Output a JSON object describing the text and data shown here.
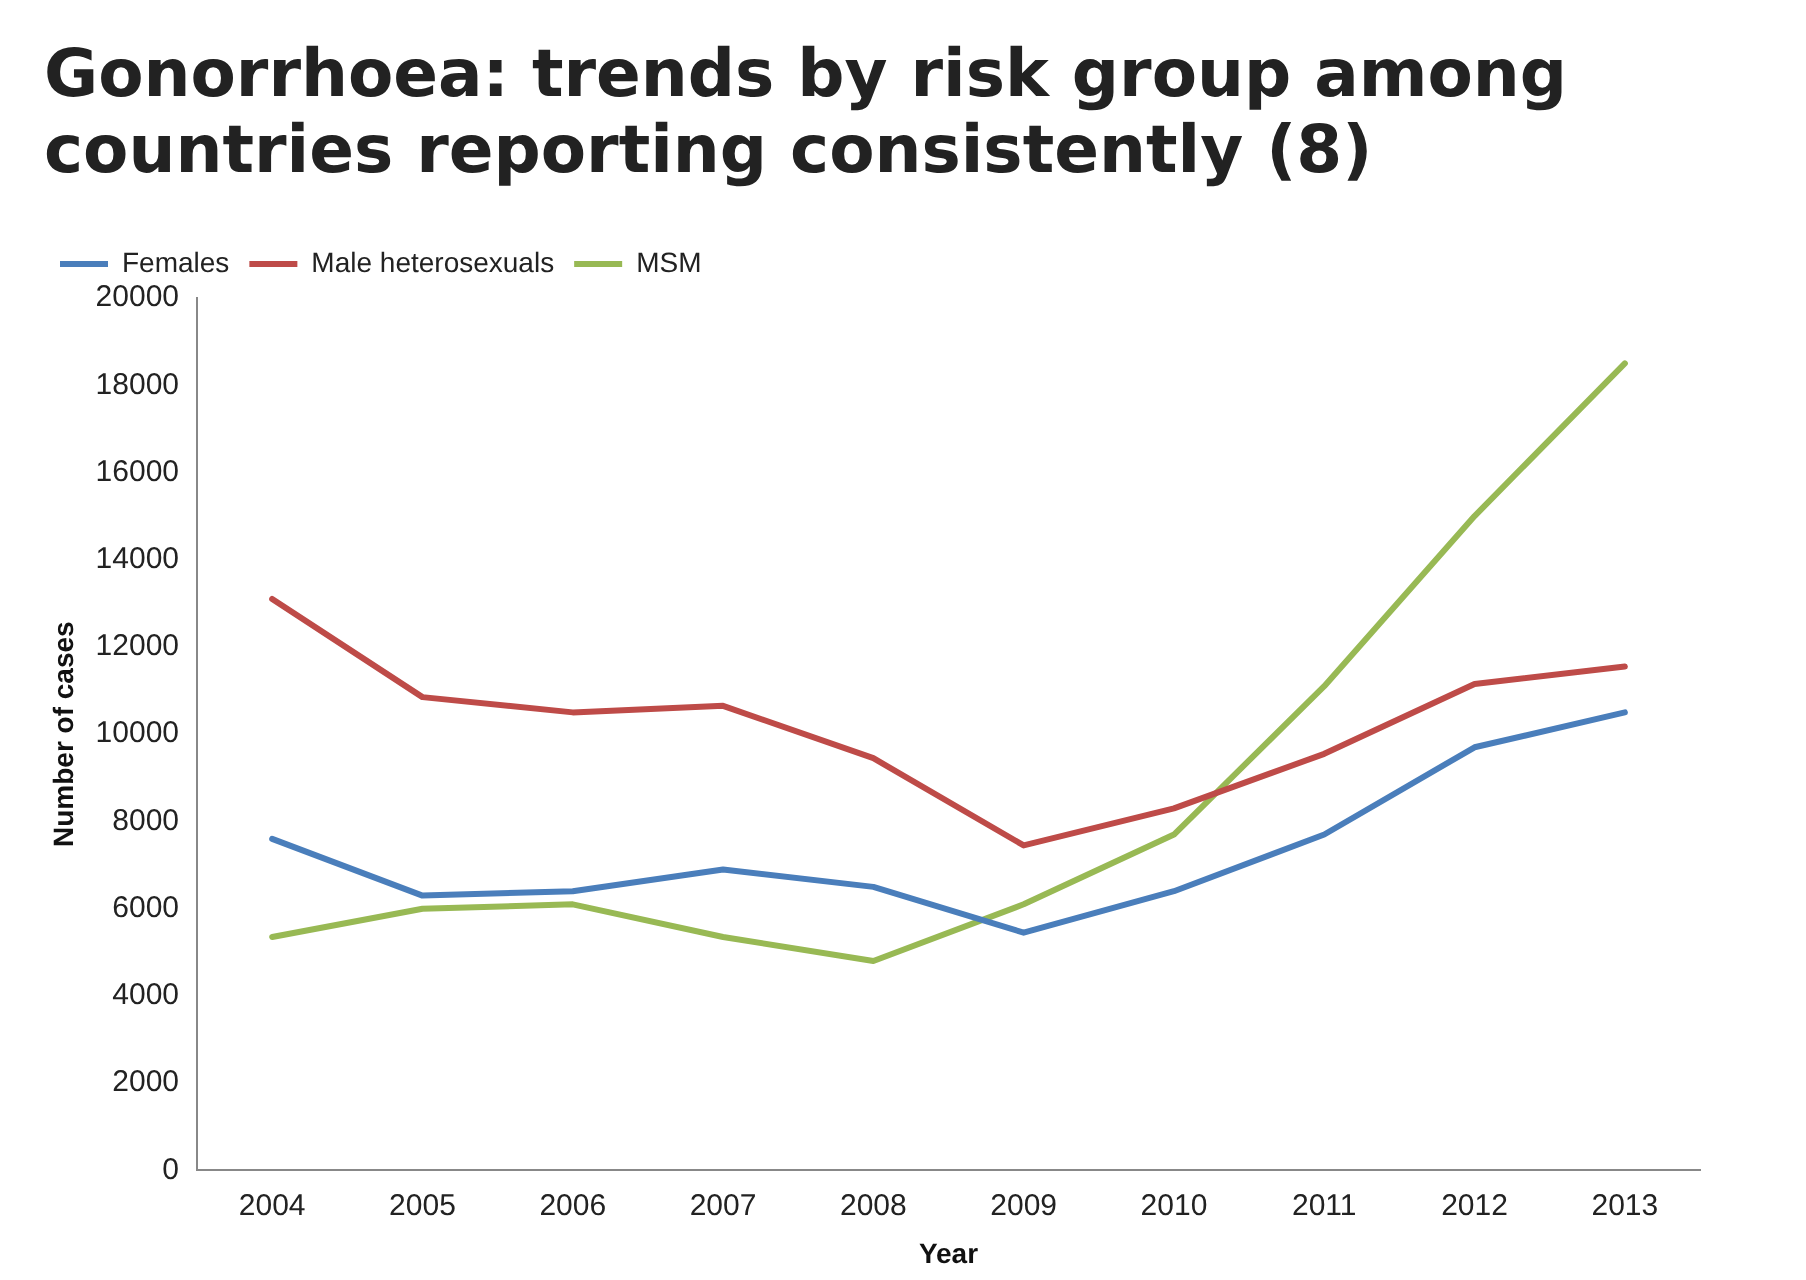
{
  "chart_data": {
    "type": "line",
    "title": "Gonorrhoea: trends by risk group among countries reporting consistently (8)",
    "xlabel": "Year",
    "ylabel": "Number of cases",
    "categories": [
      "2004",
      "2005",
      "2006",
      "2007",
      "2008",
      "2009",
      "2010",
      "2011",
      "2012",
      "2013"
    ],
    "series": [
      {
        "name": "Females",
        "color": "#4a7ebb",
        "values": [
          7600,
          6300,
          6400,
          6900,
          6500,
          5450,
          6400,
          7700,
          9700,
          10500
        ]
      },
      {
        "name": "Male heterosexuals",
        "color": "#be4b48",
        "values": [
          13100,
          10850,
          10500,
          10650,
          9450,
          7450,
          8300,
          9550,
          11150,
          11550
        ]
      },
      {
        "name": "MSM",
        "color": "#98b954",
        "values": [
          5350,
          6000,
          6100,
          5350,
          4800,
          6100,
          7700,
          11100,
          15000,
          18500
        ]
      }
    ],
    "ylim": [
      0,
      20000
    ],
    "yticks": [
      0,
      2000,
      4000,
      6000,
      8000,
      10000,
      12000,
      14000,
      16000,
      18000,
      20000
    ],
    "grid": false,
    "legend": "top left",
    "marker": "none",
    "line_style": "solid"
  }
}
